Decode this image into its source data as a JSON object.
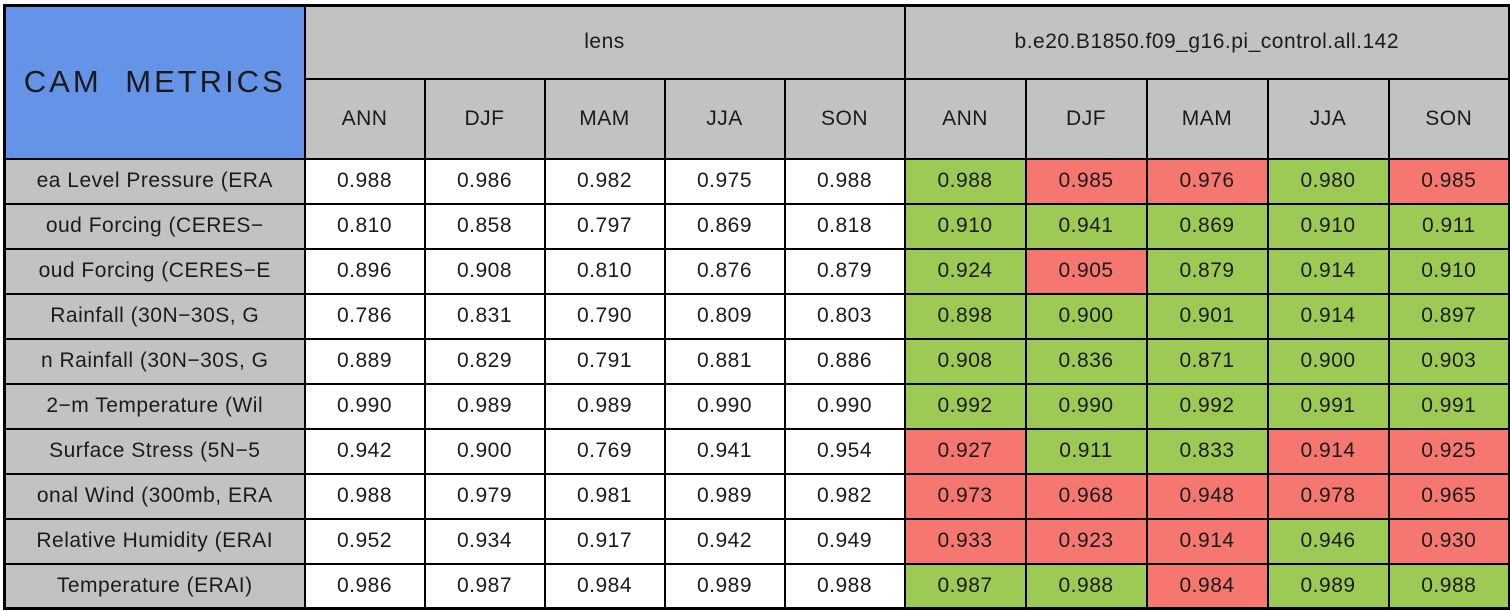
{
  "title": "CAM METRICS",
  "header": {
    "groups": [
      {
        "label": "lens",
        "seasons": [
          "ANN",
          "DJF",
          "MAM",
          "JJA",
          "SON"
        ]
      },
      {
        "label": "b.e20.B1850.f09_g16.pi_control.all.142",
        "seasons": [
          "ANN",
          "DJF",
          "MAM",
          "JJA",
          "SON"
        ]
      }
    ]
  },
  "colors": {
    "title_bg": "#6493e8",
    "header_bg": "#c2c2c2",
    "label_bg": "#c2c2c2",
    "cell_bg": "#ffffff",
    "green": "#9dca54",
    "red": "#f5776f",
    "border": "#000000",
    "text": "#1b1b1b"
  },
  "chart_data": {
    "type": "table",
    "title": "CAM METRICS",
    "column_groups": [
      {
        "label": "lens",
        "columns": [
          "ANN",
          "DJF",
          "MAM",
          "JJA",
          "SON"
        ]
      },
      {
        "label": "b.e20.B1850.f09_g16.pi_control.all.142",
        "columns": [
          "ANN",
          "DJF",
          "MAM",
          "JJA",
          "SON"
        ]
      }
    ],
    "rows": [
      {
        "label": "ea Level Pressure (ERA",
        "lens": [
          "0.988",
          "0.986",
          "0.982",
          "0.975",
          "0.988"
        ],
        "case": [
          "0.988",
          "0.985",
          "0.976",
          "0.980",
          "0.985"
        ],
        "case_colors": [
          "green",
          "red",
          "red",
          "green",
          "red"
        ]
      },
      {
        "label": "oud Forcing (CERES−",
        "lens": [
          "0.810",
          "0.858",
          "0.797",
          "0.869",
          "0.818"
        ],
        "case": [
          "0.910",
          "0.941",
          "0.869",
          "0.910",
          "0.911"
        ],
        "case_colors": [
          "green",
          "green",
          "green",
          "green",
          "green"
        ]
      },
      {
        "label": "oud Forcing (CERES−E",
        "lens": [
          "0.896",
          "0.908",
          "0.810",
          "0.876",
          "0.879"
        ],
        "case": [
          "0.924",
          "0.905",
          "0.879",
          "0.914",
          "0.910"
        ],
        "case_colors": [
          "green",
          "red",
          "green",
          "green",
          "green"
        ]
      },
      {
        "label": "Rainfall (30N−30S, G",
        "lens": [
          "0.786",
          "0.831",
          "0.790",
          "0.809",
          "0.803"
        ],
        "case": [
          "0.898",
          "0.900",
          "0.901",
          "0.914",
          "0.897"
        ],
        "case_colors": [
          "green",
          "green",
          "green",
          "green",
          "green"
        ]
      },
      {
        "label": "n Rainfall (30N−30S, G",
        "lens": [
          "0.889",
          "0.829",
          "0.791",
          "0.881",
          "0.886"
        ],
        "case": [
          "0.908",
          "0.836",
          "0.871",
          "0.900",
          "0.903"
        ],
        "case_colors": [
          "green",
          "green",
          "green",
          "green",
          "green"
        ]
      },
      {
        "label": "2−m Temperature (Wil",
        "lens": [
          "0.990",
          "0.989",
          "0.989",
          "0.990",
          "0.990"
        ],
        "case": [
          "0.992",
          "0.990",
          "0.992",
          "0.991",
          "0.991"
        ],
        "case_colors": [
          "green",
          "green",
          "green",
          "green",
          "green"
        ]
      },
      {
        "label": "Surface Stress (5N−5",
        "lens": [
          "0.942",
          "0.900",
          "0.769",
          "0.941",
          "0.954"
        ],
        "case": [
          "0.927",
          "0.911",
          "0.833",
          "0.914",
          "0.925"
        ],
        "case_colors": [
          "red",
          "green",
          "green",
          "red",
          "red"
        ]
      },
      {
        "label": "onal Wind (300mb, ERA",
        "lens": [
          "0.988",
          "0.979",
          "0.981",
          "0.989",
          "0.982"
        ],
        "case": [
          "0.973",
          "0.968",
          "0.948",
          "0.978",
          "0.965"
        ],
        "case_colors": [
          "red",
          "red",
          "red",
          "red",
          "red"
        ]
      },
      {
        "label": "Relative Humidity (ERAI",
        "lens": [
          "0.952",
          "0.934",
          "0.917",
          "0.942",
          "0.949"
        ],
        "case": [
          "0.933",
          "0.923",
          "0.914",
          "0.946",
          "0.930"
        ],
        "case_colors": [
          "red",
          "red",
          "red",
          "green",
          "red"
        ]
      },
      {
        "label": "Temperature (ERAI)",
        "lens": [
          "0.986",
          "0.987",
          "0.984",
          "0.989",
          "0.988"
        ],
        "case": [
          "0.987",
          "0.988",
          "0.984",
          "0.989",
          "0.988"
        ],
        "case_colors": [
          "green",
          "green",
          "red",
          "green",
          "green"
        ]
      }
    ]
  }
}
